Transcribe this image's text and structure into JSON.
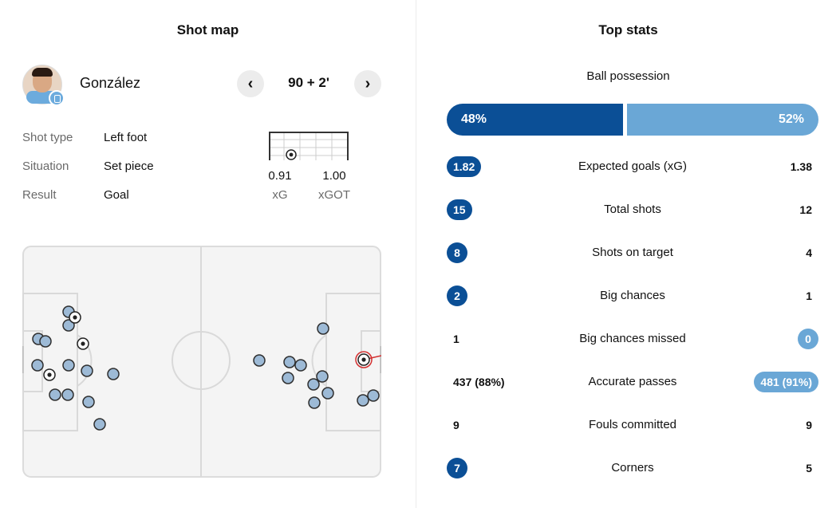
{
  "shotmap": {
    "title": "Shot map",
    "player": {
      "name": "González"
    },
    "nav": {
      "prev_icon": "‹",
      "next_icon": "›"
    },
    "minute": "90 + 2'",
    "details": [
      {
        "label": "Shot type",
        "value": "Left foot"
      },
      {
        "label": "Situation",
        "value": "Set piece"
      },
      {
        "label": "Result",
        "value": "Goal"
      }
    ],
    "xg": {
      "value": "0.91",
      "label": "xG"
    },
    "xgot": {
      "value": "1.00",
      "label": "xGOT"
    }
  },
  "topstats": {
    "title": "Top stats",
    "possession": {
      "label": "Ball possession",
      "home": "48%",
      "away": "52%",
      "home_pct": 48,
      "away_pct": 52
    },
    "rows": [
      {
        "label": "Expected goals (xG)",
        "home": "1.82",
        "away": "1.38",
        "highlight": "home"
      },
      {
        "label": "Total shots",
        "home": "15",
        "away": "12",
        "highlight": "home"
      },
      {
        "label": "Shots on target",
        "home": "8",
        "away": "4",
        "highlight": "home"
      },
      {
        "label": "Big chances",
        "home": "2",
        "away": "1",
        "highlight": "home"
      },
      {
        "label": "Big chances missed",
        "home": "1",
        "away": "0",
        "highlight": "away"
      },
      {
        "label": "Accurate passes",
        "home": "437 (88%)",
        "away": "481 (91%)",
        "highlight": "away"
      },
      {
        "label": "Fouls committed",
        "home": "9",
        "away": "9",
        "highlight": "none"
      },
      {
        "label": "Corners",
        "home": "7",
        "away": "5",
        "highlight": "home"
      }
    ],
    "colors": {
      "home": "#0b4f96",
      "away": "#6aa7d6"
    }
  }
}
